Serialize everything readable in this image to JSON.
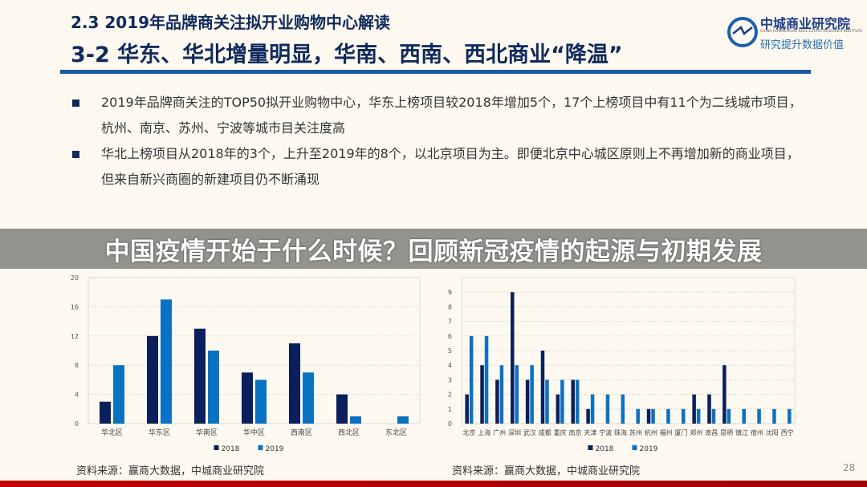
{
  "header": {
    "section_title": "2.3  2019年品牌商关注拟开业购物中心解读",
    "slide_title": "3-2  华东、华北增量明显，华南、西南、西北商业“降温”"
  },
  "logo": {
    "name": "中城商业研究院",
    "english": "CHINA COMMERCIAL REAL ESTATE RESEARCH INSTITUTE",
    "slogan": "研究提升数据价值"
  },
  "bullets": [
    "2019年品牌商关注的TOP50拟开业购物中心，华东上榜项目较2018年增加5个，17个上榜项目中有11个为二线城市项目，杭州、南京、苏州、宁波等城市目关注度高",
    "华北上榜项目从2018年的3个，上升至2019年的8个，以北京项目为主。即便北京中心城区原则上不再增加新的商业项目，但来自新兴商圈的新建项目仍不断涌现"
  ],
  "overlay_banner": "中国疫情开始于什么时候？回顾新冠疫情的起源与初期发展",
  "sources": [
    "资料来源：赢商大数据，中城商业研究院",
    "资料来源：赢商大数据，中城商业研究院"
  ],
  "page_number": "28",
  "colors": {
    "series_2018": "#0b1f5c",
    "series_2019": "#0a72c2",
    "title": "#0f2a5c",
    "footer": "#c00000"
  },
  "chart_data": [
    {
      "type": "bar",
      "categories": [
        "华北区",
        "华东区",
        "华南区",
        "华中区",
        "西南区",
        "西北区",
        "东北区"
      ],
      "series": [
        {
          "name": "2018",
          "values": [
            3,
            12,
            13,
            7,
            11,
            4,
            0
          ]
        },
        {
          "name": "2019",
          "values": [
            8,
            17,
            10,
            6,
            7,
            1,
            1
          ]
        }
      ],
      "yticks": [
        0,
        4,
        8,
        12,
        16,
        20
      ],
      "ylim": [
        0,
        20
      ],
      "grid": true,
      "legend": "bottom"
    },
    {
      "type": "bar",
      "categories": [
        "北京",
        "上海",
        "广州",
        "深圳",
        "武汉",
        "成都",
        "重庆",
        "南京",
        "天津",
        "宁波",
        "珠海",
        "苏州",
        "杭州",
        "福州",
        "厦门",
        "郑州",
        "南昌",
        "昆明",
        "镇江",
        "宿州",
        "沈阳",
        "西宁"
      ],
      "series": [
        {
          "name": "2018",
          "values": [
            2,
            4,
            3,
            9,
            3,
            5,
            2,
            3,
            1,
            0,
            0,
            0,
            1,
            0,
            0,
            2,
            2,
            4,
            0,
            0,
            0,
            0
          ]
        },
        {
          "name": "2019",
          "values": [
            6,
            6,
            4,
            4,
            4,
            3,
            3,
            3,
            2,
            2,
            2,
            1,
            1,
            1,
            1,
            1,
            1,
            1,
            1,
            1,
            1,
            1
          ]
        }
      ],
      "yticks": [
        0,
        1,
        2,
        3,
        4,
        5,
        6,
        7,
        8,
        9
      ],
      "ylim": [
        0,
        10
      ],
      "grid": true,
      "legend": "bottom"
    }
  ]
}
